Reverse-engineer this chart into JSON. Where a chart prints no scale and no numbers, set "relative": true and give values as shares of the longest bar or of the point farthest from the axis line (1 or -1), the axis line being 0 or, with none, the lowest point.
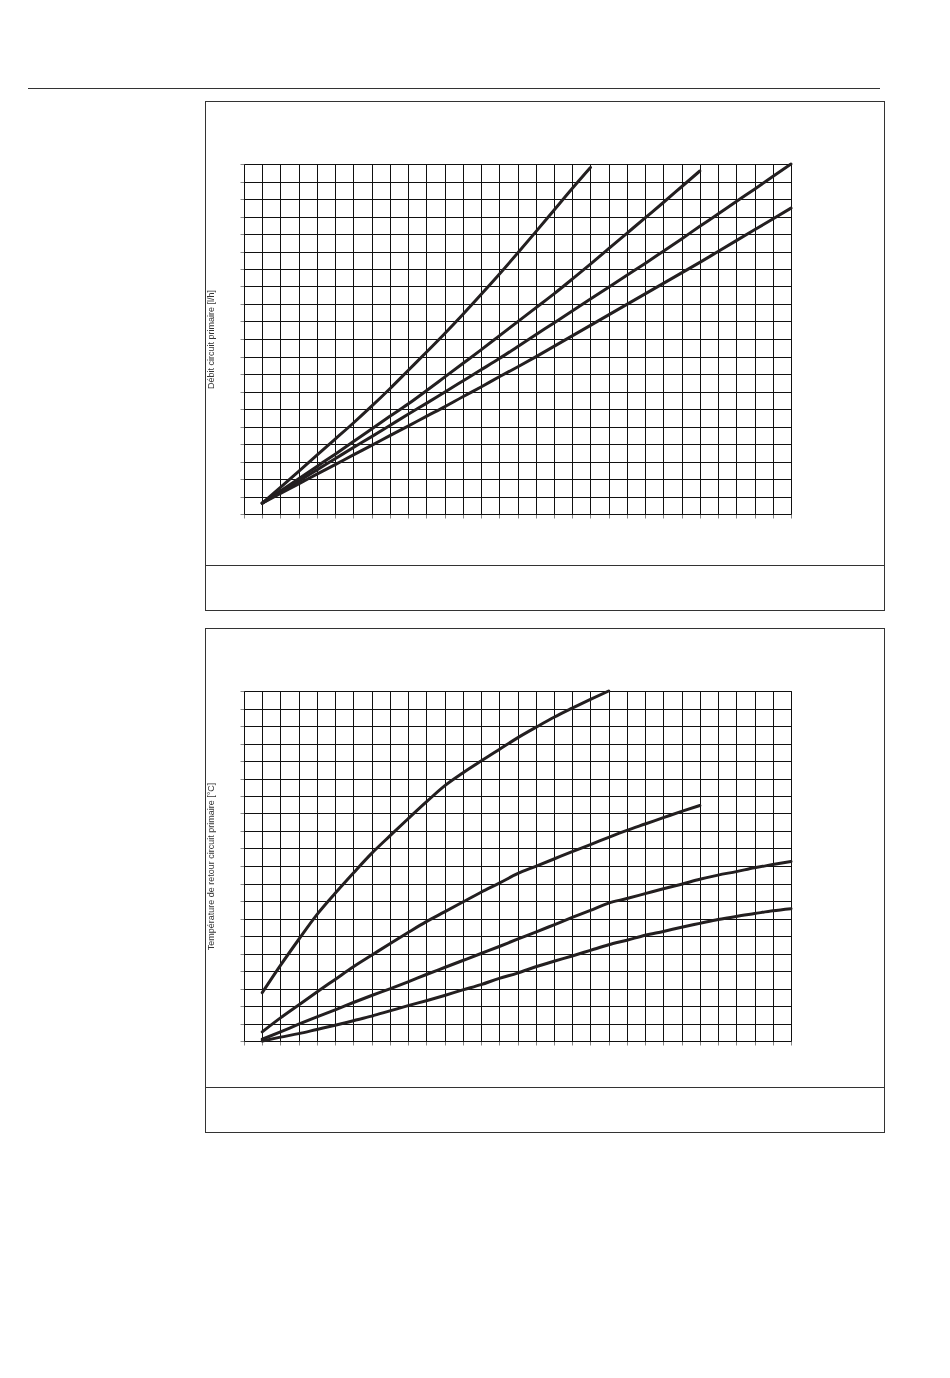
{
  "chart_data": [
    {
      "type": "line",
      "ylabel": "Débit circuit primaire [l/h]",
      "relative": true,
      "grid": true,
      "legend": false,
      "categories": [
        null,
        null,
        null,
        null,
        null,
        null,
        null,
        null,
        null,
        null,
        null,
        null,
        null,
        null,
        null,
        null,
        null,
        null,
        null,
        null,
        null,
        null,
        null,
        null,
        null,
        null,
        null,
        null,
        null,
        null,
        null
      ],
      "series": [
        {
          "color": "#231f20",
          "values": [
            null,
            0.031,
            0.076,
            0.122,
            0.168,
            0.214,
            0.26,
            0.308,
            0.358,
            0.41,
            0.462,
            0.515,
            0.57,
            0.627,
            0.685,
            0.745,
            0.806,
            0.868,
            0.93,
            0.99,
            null,
            null,
            null,
            null,
            null,
            null,
            null,
            null,
            null,
            null,
            null
          ]
        },
        {
          "color": "#231f20",
          "values": [
            null,
            0.031,
            0.066,
            0.101,
            0.136,
            0.171,
            0.207,
            0.243,
            0.279,
            0.314,
            0.352,
            0.391,
            0.43,
            0.469,
            0.509,
            0.549,
            0.589,
            0.629,
            0.671,
            0.714,
            0.758,
            0.802,
            0.846,
            0.89,
            0.935,
            0.98,
            null,
            null,
            null,
            null,
            null
          ]
        },
        {
          "color": "#231f20",
          "values": [
            null,
            0.031,
            0.063,
            0.094,
            0.126,
            0.158,
            0.19,
            0.221,
            0.253,
            0.285,
            0.316,
            0.348,
            0.38,
            0.412,
            0.444,
            0.478,
            0.512,
            0.546,
            0.58,
            0.614,
            0.648,
            0.682,
            0.716,
            0.751,
            0.786,
            0.822,
            0.857,
            0.893,
            0.928,
            0.964,
            1.0
          ]
        },
        {
          "color": "#231f20",
          "values": [
            null,
            0.031,
            0.059,
            0.086,
            0.114,
            0.141,
            0.169,
            0.196,
            0.224,
            0.251,
            0.279,
            0.306,
            0.335,
            0.363,
            0.392,
            0.42,
            0.449,
            0.479,
            0.509,
            0.539,
            0.569,
            0.599,
            0.629,
            0.659,
            0.689,
            0.719,
            0.75,
            0.781,
            0.812,
            0.843,
            0.874
          ]
        }
      ]
    },
    {
      "type": "line",
      "ylabel": "Température de retour circuit primaire [°C]",
      "relative": true,
      "grid": true,
      "legend": false,
      "categories": [
        null,
        null,
        null,
        null,
        null,
        null,
        null,
        null,
        null,
        null,
        null,
        null,
        null,
        null,
        null,
        null,
        null,
        null,
        null,
        null,
        null,
        null,
        null,
        null,
        null,
        null,
        null,
        null,
        null,
        null,
        null
      ],
      "series": [
        {
          "color": "#231f20",
          "values": [
            null,
            0.138,
            0.216,
            0.29,
            0.361,
            0.422,
            0.48,
            0.536,
            0.586,
            0.635,
            0.683,
            0.729,
            0.766,
            0.8,
            0.833,
            0.866,
            0.896,
            0.925,
            0.951,
            0.976,
            1.0,
            null,
            null,
            null,
            null,
            null,
            null,
            null,
            null,
            null,
            null
          ]
        },
        {
          "color": "#231f20",
          "values": [
            null,
            0.026,
            0.066,
            0.103,
            0.14,
            0.176,
            0.212,
            0.245,
            0.278,
            0.31,
            0.341,
            0.369,
            0.397,
            0.425,
            0.451,
            0.478,
            0.499,
            0.52,
            0.541,
            0.561,
            0.582,
            0.602,
            0.62,
            0.638,
            0.656,
            0.673,
            null,
            null,
            null,
            null,
            null
          ]
        },
        {
          "color": "#231f20",
          "values": [
            null,
            0.005,
            0.026,
            0.048,
            0.069,
            0.089,
            0.11,
            0.13,
            0.149,
            0.169,
            0.19,
            0.21,
            0.23,
            0.25,
            0.27,
            0.291,
            0.311,
            0.332,
            0.353,
            0.373,
            0.394,
            0.407,
            0.421,
            0.435,
            0.448,
            0.462,
            0.474,
            0.484,
            0.495,
            0.504,
            0.513
          ]
        },
        {
          "color": "#231f20",
          "values": [
            null,
            0,
            0.011,
            0.021,
            0.033,
            0.045,
            0.058,
            0.071,
            0.086,
            0.101,
            0.115,
            0.13,
            0.146,
            0.161,
            0.179,
            0.194,
            0.212,
            0.228,
            0.243,
            0.259,
            0.275,
            0.288,
            0.302,
            0.313,
            0.325,
            0.336,
            0.347,
            0.356,
            0.364,
            0.372,
            0.378
          ]
        }
      ]
    }
  ]
}
